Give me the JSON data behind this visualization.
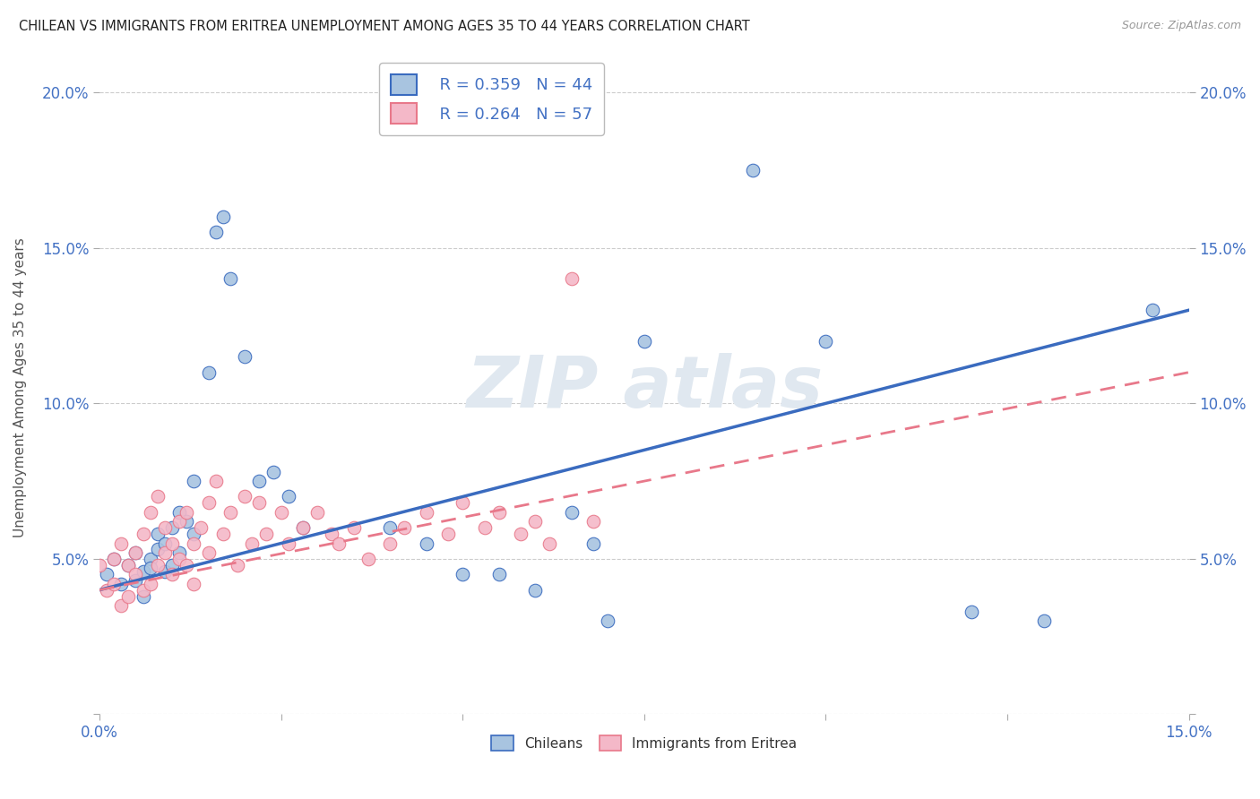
{
  "title": "CHILEAN VS IMMIGRANTS FROM ERITREA UNEMPLOYMENT AMONG AGES 35 TO 44 YEARS CORRELATION CHART",
  "source": "Source: ZipAtlas.com",
  "ylabel": "Unemployment Among Ages 35 to 44 years",
  "xlim": [
    0.0,
    0.15
  ],
  "ylim": [
    0.0,
    0.21
  ],
  "xtick_positions": [
    0.0,
    0.025,
    0.05,
    0.075,
    0.1,
    0.125,
    0.15
  ],
  "xtick_labels": [
    "0.0%",
    "",
    "",
    "",
    "",
    "",
    "15.0%"
  ],
  "ytick_positions": [
    0.0,
    0.05,
    0.1,
    0.15,
    0.2
  ],
  "ytick_labels": [
    "",
    "5.0%",
    "10.0%",
    "15.0%",
    "20.0%"
  ],
  "chilean_R": 0.359,
  "chilean_N": 44,
  "eritrea_R": 0.264,
  "eritrea_N": 57,
  "chilean_color": "#a8c4e0",
  "eritrea_color": "#f4b8c8",
  "chilean_line_color": "#3a6bbf",
  "eritrea_line_color": "#e8788a",
  "watermark_text": "ZIPatlas",
  "chilean_scatter_x": [
    0.001,
    0.002,
    0.003,
    0.004,
    0.005,
    0.005,
    0.006,
    0.006,
    0.007,
    0.007,
    0.008,
    0.008,
    0.009,
    0.009,
    0.01,
    0.01,
    0.011,
    0.011,
    0.012,
    0.013,
    0.013,
    0.015,
    0.016,
    0.017,
    0.018,
    0.02,
    0.022,
    0.024,
    0.026,
    0.028,
    0.04,
    0.045,
    0.05,
    0.055,
    0.06,
    0.065,
    0.068,
    0.07,
    0.075,
    0.09,
    0.1,
    0.12,
    0.13,
    0.145
  ],
  "chilean_scatter_y": [
    0.045,
    0.05,
    0.042,
    0.048,
    0.043,
    0.052,
    0.046,
    0.038,
    0.05,
    0.047,
    0.053,
    0.058,
    0.046,
    0.055,
    0.048,
    0.06,
    0.052,
    0.065,
    0.062,
    0.058,
    0.075,
    0.11,
    0.155,
    0.16,
    0.14,
    0.115,
    0.075,
    0.078,
    0.07,
    0.06,
    0.06,
    0.055,
    0.045,
    0.045,
    0.04,
    0.065,
    0.055,
    0.03,
    0.12,
    0.175,
    0.12,
    0.033,
    0.03,
    0.13
  ],
  "eritrea_scatter_x": [
    0.0,
    0.001,
    0.002,
    0.002,
    0.003,
    0.003,
    0.004,
    0.004,
    0.005,
    0.005,
    0.006,
    0.006,
    0.007,
    0.007,
    0.008,
    0.008,
    0.009,
    0.009,
    0.01,
    0.01,
    0.011,
    0.011,
    0.012,
    0.012,
    0.013,
    0.013,
    0.014,
    0.015,
    0.015,
    0.016,
    0.017,
    0.018,
    0.019,
    0.02,
    0.021,
    0.022,
    0.023,
    0.025,
    0.026,
    0.028,
    0.03,
    0.032,
    0.033,
    0.035,
    0.037,
    0.04,
    0.042,
    0.045,
    0.048,
    0.05,
    0.053,
    0.055,
    0.058,
    0.06,
    0.062,
    0.065,
    0.068
  ],
  "eritrea_scatter_y": [
    0.048,
    0.04,
    0.05,
    0.042,
    0.055,
    0.035,
    0.048,
    0.038,
    0.052,
    0.045,
    0.058,
    0.04,
    0.065,
    0.042,
    0.07,
    0.048,
    0.06,
    0.052,
    0.055,
    0.045,
    0.062,
    0.05,
    0.065,
    0.048,
    0.055,
    0.042,
    0.06,
    0.068,
    0.052,
    0.075,
    0.058,
    0.065,
    0.048,
    0.07,
    0.055,
    0.068,
    0.058,
    0.065,
    0.055,
    0.06,
    0.065,
    0.058,
    0.055,
    0.06,
    0.05,
    0.055,
    0.06,
    0.065,
    0.058,
    0.068,
    0.06,
    0.065,
    0.058,
    0.062,
    0.055,
    0.14,
    0.062
  ]
}
